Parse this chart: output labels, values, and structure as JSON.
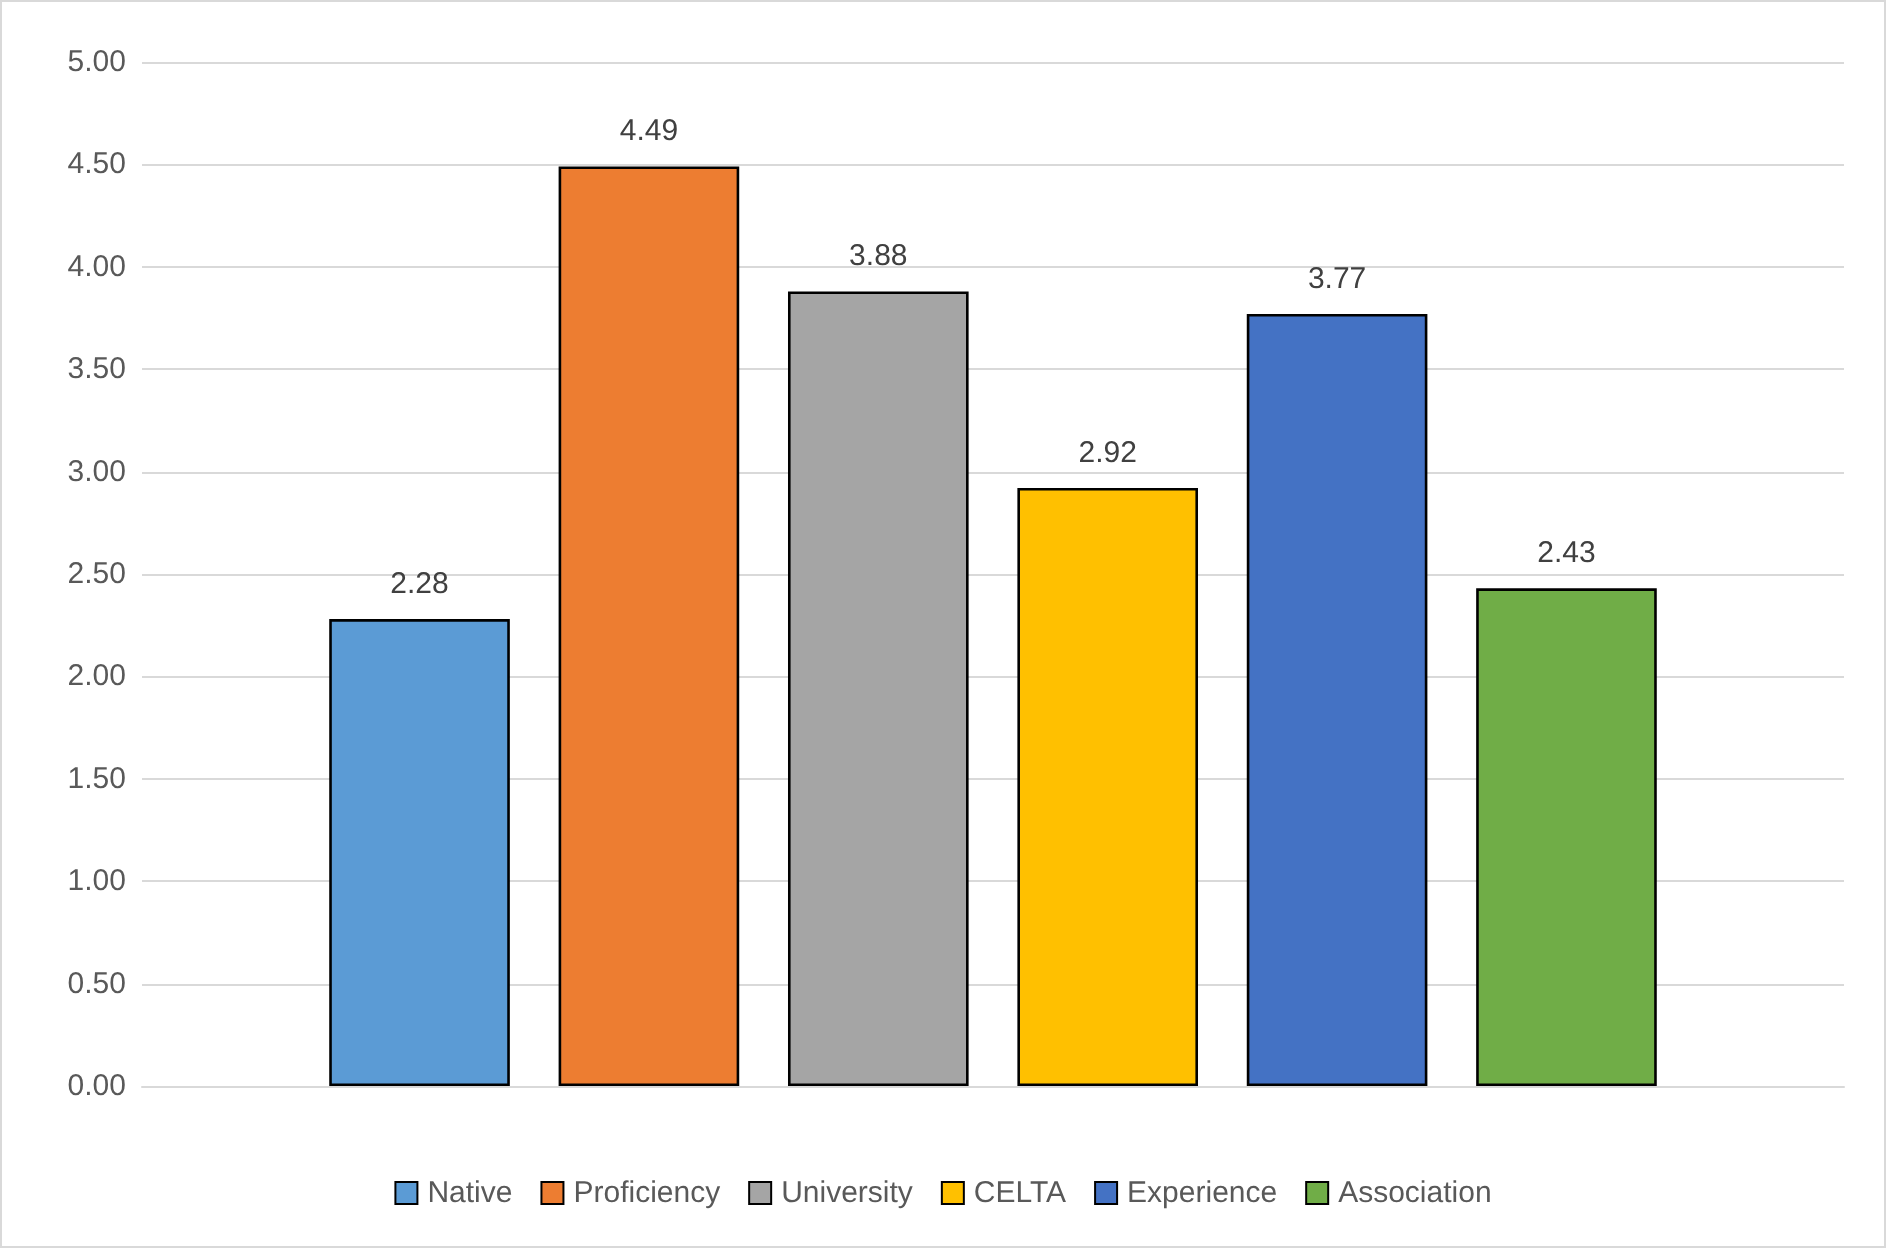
{
  "chart_data": {
    "type": "bar",
    "categories": [
      null
    ],
    "series": [
      {
        "name": "Native",
        "color": "#5b9bd5",
        "values": [
          2.28
        ]
      },
      {
        "name": "Proficiency",
        "color": "#ed7d31",
        "values": [
          4.49
        ]
      },
      {
        "name": "University",
        "color": "#a5a5a5",
        "values": [
          3.88
        ]
      },
      {
        "name": "CELTA",
        "color": "#ffc000",
        "values": [
          2.92
        ]
      },
      {
        "name": "Experience",
        "color": "#4472c4",
        "values": [
          3.77
        ]
      },
      {
        "name": "Association",
        "color": "#70ad47",
        "values": [
          2.43
        ]
      }
    ],
    "ylim": [
      0,
      5
    ],
    "yticks": [
      {
        "value": 0,
        "label": "0.00"
      },
      {
        "value": 0.5,
        "label": "0.50"
      },
      {
        "value": 1,
        "label": "1.00"
      },
      {
        "value": 1.5,
        "label": "1.50"
      },
      {
        "value": 2,
        "label": "2.00"
      },
      {
        "value": 2.5,
        "label": "2.50"
      },
      {
        "value": 3,
        "label": "3.00"
      },
      {
        "value": 3.5,
        "label": "3.50"
      },
      {
        "value": 4,
        "label": "4.00"
      },
      {
        "value": 4.5,
        "label": "4.50"
      },
      {
        "value": 5,
        "label": "5.00"
      }
    ],
    "grid": "y",
    "legend": "bottom",
    "data_labels": true
  }
}
